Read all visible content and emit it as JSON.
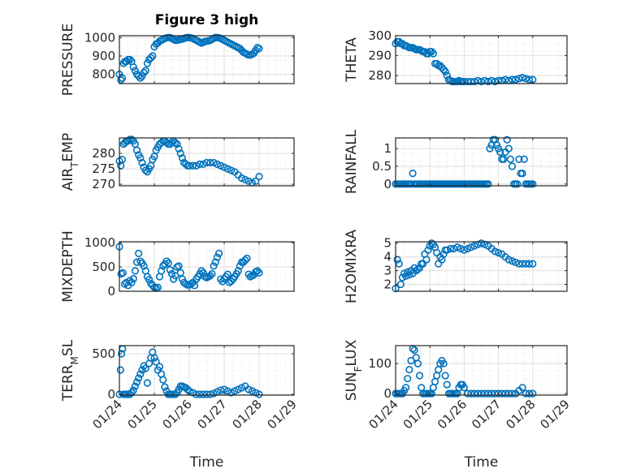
{
  "figure": {
    "title": "Figure 3 high",
    "xlabel": "Time",
    "x_ticklabels": [
      "01/24",
      "01/25",
      "01/26",
      "01/27",
      "01/28",
      "01/29"
    ]
  },
  "chart_data": [
    {
      "type": "scatter",
      "panel": "top-left",
      "title": "Figure 3 high",
      "ylabel": "PRESSURE",
      "yticks": [
        "800",
        "900",
        "1000"
      ],
      "ylim": [
        750,
        1010
      ],
      "x_range_days": [
        0,
        5
      ],
      "grid": true,
      "marker": "open-circle",
      "color": "#0072BD",
      "x": [
        0,
        0.04,
        0.08,
        0.12,
        0.16,
        0.2,
        0.25,
        0.3,
        0.35,
        0.4,
        0.45,
        0.5,
        0.55,
        0.6,
        0.65,
        0.7,
        0.75,
        0.8,
        0.85,
        0.9,
        0.95,
        1.0,
        1.05,
        1.1,
        1.15,
        1.2,
        1.25,
        1.3,
        1.35,
        1.4,
        1.45,
        1.5,
        1.55,
        1.6,
        1.65,
        1.7,
        1.75,
        1.8,
        1.85,
        1.9,
        1.95,
        2.0,
        2.05,
        2.1,
        2.15,
        2.2,
        2.25,
        2.3,
        2.35,
        2.4,
        2.45,
        2.5,
        2.55,
        2.6,
        2.65,
        2.7,
        2.75,
        2.8,
        2.85,
        2.9,
        2.95,
        3.0,
        3.05,
        3.1,
        3.15,
        3.2,
        3.25,
        3.3,
        3.35,
        3.4,
        3.45,
        3.5,
        3.55,
        3.6,
        3.65,
        3.7,
        3.75,
        3.8,
        3.85,
        3.9,
        3.95,
        4.0
      ],
      "y": [
        800,
        770,
        780,
        860,
        870,
        870,
        880,
        880,
        870,
        840,
        820,
        800,
        790,
        780,
        790,
        810,
        820,
        860,
        880,
        890,
        900,
        950,
        965,
        970,
        980,
        985,
        990,
        995,
        998,
        1000,
        1000,
        995,
        990,
        985,
        985,
        988,
        990,
        992,
        995,
        998,
        1000,
        1000,
        998,
        995,
        990,
        985,
        980,
        975,
        970,
        975,
        978,
        980,
        982,
        985,
        990,
        995,
        1000,
        1000,
        998,
        995,
        990,
        985,
        980,
        975,
        970,
        965,
        960,
        955,
        950,
        945,
        940,
        930,
        920,
        915,
        910,
        905,
        905,
        910,
        915,
        930,
        945,
        940
      ]
    },
    {
      "type": "scatter",
      "panel": "top-right",
      "ylabel": "THETA",
      "yticks": [
        "280",
        "290",
        "300"
      ],
      "ylim": [
        276,
        300
      ],
      "x_range_days": [
        0,
        5
      ],
      "grid": true,
      "marker": "open-circle",
      "color": "#0072BD",
      "x": [
        0,
        0.05,
        0.1,
        0.15,
        0.2,
        0.25,
        0.3,
        0.35,
        0.4,
        0.45,
        0.5,
        0.55,
        0.6,
        0.65,
        0.7,
        0.75,
        0.8,
        0.85,
        0.9,
        0.95,
        1.0,
        1.05,
        1.1,
        1.15,
        1.2,
        1.25,
        1.3,
        1.35,
        1.4,
        1.45,
        1.5,
        1.55,
        1.6,
        1.65,
        1.7,
        1.75,
        1.8,
        1.85,
        1.9,
        1.95,
        2.0,
        2.1,
        2.2,
        2.3,
        2.4,
        2.5,
        2.6,
        2.7,
        2.8,
        2.9,
        3.0,
        3.1,
        3.2,
        3.3,
        3.4,
        3.5,
        3.6,
        3.7,
        3.8,
        3.9,
        4.0
      ],
      "y": [
        296,
        297,
        297,
        296,
        296,
        295,
        295,
        294.5,
        294,
        294,
        294,
        293.5,
        293,
        293,
        293,
        292.5,
        292,
        292,
        291,
        291,
        292,
        292,
        291,
        286,
        286,
        285,
        285,
        284,
        283,
        282,
        280,
        278,
        277.5,
        277,
        277,
        277,
        277,
        277.5,
        277,
        277,
        277,
        277,
        277,
        277,
        277.5,
        277,
        277.5,
        277,
        277.5,
        277,
        277.5,
        277.5,
        278,
        277.5,
        278,
        278,
        278.5,
        279,
        278.5,
        278,
        278
      ]
    },
    {
      "type": "scatter",
      "panel": "middle-left",
      "ylabel": "AIR_TEMP",
      "yticks": [
        "270",
        "275",
        "280"
      ],
      "ylim": [
        269.5,
        285
      ],
      "x_range_days": [
        0,
        5
      ],
      "grid": true,
      "marker": "open-circle",
      "color": "#0072BD",
      "x": [
        0,
        0.04,
        0.08,
        0.12,
        0.16,
        0.2,
        0.25,
        0.3,
        0.35,
        0.4,
        0.45,
        0.5,
        0.55,
        0.6,
        0.65,
        0.7,
        0.75,
        0.8,
        0.85,
        0.9,
        0.95,
        1.0,
        1.05,
        1.1,
        1.15,
        1.2,
        1.25,
        1.3,
        1.35,
        1.4,
        1.45,
        1.5,
        1.55,
        1.6,
        1.65,
        1.7,
        1.75,
        1.8,
        1.85,
        1.9,
        1.95,
        2.0,
        2.1,
        2.2,
        2.3,
        2.4,
        2.5,
        2.6,
        2.7,
        2.8,
        2.9,
        3.0,
        3.1,
        3.2,
        3.3,
        3.4,
        3.5,
        3.6,
        3.7,
        3.8,
        3.9,
        4.0
      ],
      "y": [
        277.5,
        276,
        278,
        283,
        283.5,
        284,
        284,
        284.5,
        284.5,
        284,
        283,
        281,
        279.5,
        278.5,
        277,
        275.5,
        274.5,
        274,
        275,
        276,
        278,
        279,
        281,
        282,
        283,
        283.5,
        284,
        284,
        283.5,
        283,
        283,
        283.5,
        284,
        283.5,
        283,
        281.5,
        280,
        278.5,
        277,
        276.5,
        276,
        276,
        276,
        276,
        276.5,
        276.5,
        277,
        277,
        277,
        276.5,
        276,
        275.5,
        275,
        274.5,
        274,
        273,
        272,
        271.5,
        271,
        270.5,
        271,
        272.5
      ]
    },
    {
      "type": "scatter",
      "panel": "middle-right",
      "ylabel": "RAINFALL",
      "yticks": [
        "0",
        "0.5",
        "1"
      ],
      "ylim": [
        -0.05,
        1.3
      ],
      "x_range_days": [
        0,
        5
      ],
      "grid": true,
      "marker": "open-circle",
      "color": "#0072BD",
      "x": [
        0,
        0.05,
        0.1,
        0.15,
        0.2,
        0.25,
        0.3,
        0.35,
        0.4,
        0.45,
        0.5,
        0.55,
        0.6,
        0.65,
        0.7,
        0.75,
        0.8,
        0.85,
        0.9,
        0.95,
        1.0,
        1.05,
        1.1,
        1.15,
        1.2,
        1.25,
        1.3,
        1.35,
        1.4,
        1.45,
        1.5,
        1.55,
        1.6,
        1.65,
        1.7,
        1.75,
        1.8,
        1.85,
        1.9,
        1.95,
        2.0,
        2.05,
        2.1,
        2.15,
        2.2,
        2.25,
        2.3,
        2.35,
        2.4,
        2.45,
        2.5,
        2.55,
        2.6,
        2.65,
        2.7,
        2.75,
        2.8,
        2.85,
        2.9,
        2.95,
        3.0,
        3.05,
        3.1,
        3.15,
        3.2,
        3.25,
        3.3,
        3.35,
        3.4,
        3.45,
        3.5,
        3.55,
        3.6,
        3.65,
        3.7,
        3.75,
        3.8,
        3.85,
        3.9,
        3.95,
        4.0
      ],
      "y": [
        0,
        0,
        0,
        0,
        0,
        0,
        0,
        0,
        0,
        0,
        0.3,
        0,
        0,
        0,
        0,
        0,
        0,
        0,
        0,
        0,
        0,
        0,
        0,
        0,
        0,
        0,
        0,
        0,
        0,
        0,
        0,
        0,
        0,
        0,
        0,
        0,
        0,
        0,
        0,
        0,
        0,
        0,
        0,
        0,
        0,
        0,
        0,
        0,
        0,
        0,
        0,
        0,
        0,
        0,
        0,
        1.0,
        1.1,
        1.25,
        1.25,
        1.1,
        1.0,
        0.9,
        0.7,
        0.7,
        0.9,
        1.25,
        1.0,
        0.7,
        0.5,
        0,
        0,
        0,
        0.7,
        0.3,
        0.3,
        0.7,
        0,
        0,
        0,
        0,
        0
      ]
    },
    {
      "type": "scatter",
      "panel": "lower-left",
      "ylabel": "MIXDEPTH",
      "yticks": [
        "0",
        "500",
        "1000"
      ],
      "ylim": [
        0,
        1020
      ],
      "x_range_days": [
        0,
        5
      ],
      "grid": true,
      "marker": "open-circle",
      "color": "#0072BD",
      "x": [
        0,
        0.05,
        0.1,
        0.15,
        0.2,
        0.25,
        0.3,
        0.35,
        0.4,
        0.45,
        0.5,
        0.55,
        0.6,
        0.65,
        0.7,
        0.75,
        0.8,
        0.85,
        0.9,
        0.95,
        1.0,
        1.05,
        1.1,
        1.15,
        1.2,
        1.25,
        1.3,
        1.35,
        1.4,
        1.45,
        1.5,
        1.55,
        1.6,
        1.65,
        1.7,
        1.75,
        1.8,
        1.85,
        1.9,
        1.95,
        2.0,
        2.05,
        2.1,
        2.15,
        2.2,
        2.25,
        2.3,
        2.35,
        2.4,
        2.45,
        2.5,
        2.55,
        2.6,
        2.65,
        2.7,
        2.75,
        2.8,
        2.85,
        2.9,
        2.95,
        3.0,
        3.05,
        3.1,
        3.15,
        3.2,
        3.25,
        3.3,
        3.35,
        3.4,
        3.45,
        3.5,
        3.55,
        3.6,
        3.65,
        3.7,
        3.75,
        3.8,
        3.85,
        3.9,
        3.95,
        4.0
      ],
      "y": [
        920,
        360,
        380,
        150,
        180,
        120,
        220,
        180,
        260,
        420,
        600,
        780,
        620,
        580,
        520,
        420,
        300,
        240,
        160,
        120,
        80,
        60,
        80,
        300,
        420,
        520,
        560,
        620,
        580,
        440,
        360,
        250,
        320,
        500,
        520,
        380,
        250,
        180,
        150,
        130,
        130,
        150,
        180,
        120,
        250,
        300,
        360,
        420,
        380,
        300,
        280,
        300,
        320,
        360,
        520,
        600,
        700,
        780,
        250,
        200,
        260,
        300,
        350,
        180,
        210,
        250,
        300,
        360,
        420,
        520,
        600,
        600,
        640,
        680,
        350,
        300,
        320,
        340,
        400,
        420,
        380
      ]
    },
    {
      "type": "scatter",
      "panel": "lower-right",
      "ylabel": "H2OMIXRA",
      "yticks": [
        "2",
        "3",
        "4",
        "5"
      ],
      "ylim": [
        1.5,
        5.1
      ],
      "x_range_days": [
        0,
        5
      ],
      "grid": true,
      "marker": "open-circle",
      "color": "#0072BD",
      "x": [
        0,
        0.05,
        0.1,
        0.15,
        0.2,
        0.25,
        0.3,
        0.35,
        0.4,
        0.45,
        0.5,
        0.55,
        0.6,
        0.65,
        0.7,
        0.75,
        0.8,
        0.85,
        0.9,
        0.95,
        1.0,
        1.05,
        1.1,
        1.15,
        1.2,
        1.25,
        1.3,
        1.35,
        1.4,
        1.45,
        1.5,
        1.6,
        1.7,
        1.8,
        1.9,
        2.0,
        2.1,
        2.2,
        2.3,
        2.4,
        2.5,
        2.6,
        2.7,
        2.8,
        2.9,
        3.0,
        3.1,
        3.2,
        3.3,
        3.4,
        3.5,
        3.6,
        3.7,
        3.8,
        3.9,
        4.0
      ],
      "y": [
        1.7,
        3.8,
        3.5,
        2.0,
        2.5,
        2.8,
        2.6,
        2.9,
        2.7,
        3.0,
        2.8,
        3.2,
        3.0,
        3.1,
        3.2,
        3.5,
        3.5,
        4.2,
        3.8,
        4.5,
        4.8,
        5.0,
        4.9,
        4.7,
        4.3,
        3.5,
        4.0,
        3.8,
        4.2,
        4.5,
        4.5,
        4.6,
        4.6,
        4.7,
        4.6,
        4.5,
        4.6,
        4.7,
        4.8,
        4.9,
        5.0,
        4.9,
        4.8,
        4.6,
        4.4,
        4.3,
        4.2,
        4.0,
        3.8,
        3.7,
        3.6,
        3.5,
        3.5,
        3.5,
        3.5,
        3.5
      ]
    },
    {
      "type": "scatter",
      "panel": "bottom-left",
      "ylabel": "TERR_MSL",
      "yticks": [
        "0",
        "500"
      ],
      "ylim": [
        -10,
        600
      ],
      "x_range_days": [
        0,
        5
      ],
      "grid": true,
      "marker": "open-circle",
      "color": "#0072BD",
      "x": [
        0,
        0.03,
        0.06,
        0.09,
        0.12,
        0.16,
        0.2,
        0.25,
        0.3,
        0.35,
        0.4,
        0.45,
        0.5,
        0.55,
        0.6,
        0.65,
        0.7,
        0.75,
        0.8,
        0.85,
        0.9,
        0.95,
        1.0,
        1.05,
        1.1,
        1.15,
        1.2,
        1.25,
        1.3,
        1.35,
        1.4,
        1.45,
        1.5,
        1.55,
        1.6,
        1.65,
        1.7,
        1.75,
        1.8,
        1.85,
        1.9,
        1.95,
        2.0,
        2.1,
        2.2,
        2.3,
        2.4,
        2.5,
        2.6,
        2.7,
        2.8,
        2.9,
        3.0,
        3.1,
        3.2,
        3.3,
        3.4,
        3.5,
        3.6,
        3.7,
        3.8,
        3.9,
        4.0
      ],
      "y": [
        0,
        300,
        500,
        560,
        0,
        0,
        0,
        0,
        0,
        20,
        50,
        100,
        150,
        200,
        250,
        300,
        350,
        320,
        140,
        380,
        450,
        520,
        450,
        400,
        300,
        340,
        250,
        180,
        90,
        40,
        0,
        0,
        0,
        0,
        0,
        20,
        60,
        100,
        100,
        90,
        80,
        60,
        40,
        20,
        0,
        0,
        0,
        0,
        0,
        10,
        30,
        50,
        60,
        40,
        20,
        40,
        60,
        80,
        100,
        60,
        40,
        20,
        0
      ]
    },
    {
      "type": "scatter",
      "panel": "bottom-right",
      "ylabel": "SUN_FLUX",
      "yticks": [
        "0",
        "100"
      ],
      "ylim": [
        -5,
        160
      ],
      "x_range_days": [
        0,
        5
      ],
      "grid": true,
      "marker": "open-circle",
      "color": "#0072BD",
      "x": [
        0,
        0.05,
        0.1,
        0.15,
        0.2,
        0.25,
        0.3,
        0.35,
        0.4,
        0.45,
        0.5,
        0.55,
        0.6,
        0.65,
        0.7,
        0.75,
        0.8,
        0.85,
        0.9,
        0.95,
        1.0,
        1.05,
        1.1,
        1.15,
        1.2,
        1.25,
        1.3,
        1.35,
        1.4,
        1.45,
        1.5,
        1.55,
        1.6,
        1.65,
        1.7,
        1.75,
        1.8,
        1.85,
        1.9,
        1.95,
        2.0,
        2.1,
        2.2,
        2.3,
        2.4,
        2.5,
        2.6,
        2.7,
        2.8,
        2.9,
        3.0,
        3.1,
        3.2,
        3.3,
        3.4,
        3.5,
        3.6,
        3.7,
        3.8,
        3.9,
        4.0
      ],
      "y": [
        0,
        0,
        0,
        0,
        0,
        10,
        20,
        50,
        80,
        110,
        150,
        145,
        120,
        100,
        60,
        20,
        0,
        0,
        0,
        0,
        0,
        0,
        20,
        40,
        60,
        80,
        100,
        110,
        100,
        60,
        30,
        0,
        0,
        0,
        0,
        0,
        0,
        20,
        30,
        30,
        20,
        0,
        0,
        0,
        0,
        0,
        0,
        0,
        0,
        0,
        0,
        0,
        0,
        0,
        0,
        0,
        10,
        20,
        0,
        0,
        0
      ]
    }
  ]
}
